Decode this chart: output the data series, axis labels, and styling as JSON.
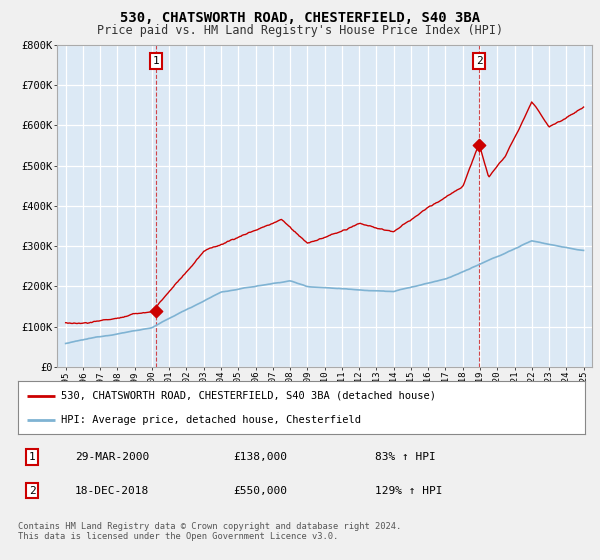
{
  "title": "530, CHATSWORTH ROAD, CHESTERFIELD, S40 3BA",
  "subtitle": "Price paid vs. HM Land Registry's House Price Index (HPI)",
  "ylabel_ticks": [
    "£0",
    "£100K",
    "£200K",
    "£300K",
    "£400K",
    "£500K",
    "£600K",
    "£700K",
    "£800K"
  ],
  "ytick_values": [
    0,
    100000,
    200000,
    300000,
    400000,
    500000,
    600000,
    700000,
    800000
  ],
  "ylim": [
    0,
    800000
  ],
  "xlim_start": 1994.5,
  "xlim_end": 2025.5,
  "red_color": "#cc0000",
  "blue_color": "#7fb3d3",
  "background_color": "#f0f0f0",
  "plot_bg_color": "#dce9f5",
  "grid_color": "#ffffff",
  "ann1_x": 2000.22,
  "ann1_y": 138000,
  "ann2_x": 2018.96,
  "ann2_y": 550000,
  "annotation1_text": "1",
  "annotation1_date": "29-MAR-2000",
  "annotation1_price": "£138,000",
  "annotation1_hpi": "83% ↑ HPI",
  "annotation2_text": "2",
  "annotation2_date": "18-DEC-2018",
  "annotation2_price": "£550,000",
  "annotation2_hpi": "129% ↑ HPI",
  "legend_label1": "530, CHATSWORTH ROAD, CHESTERFIELD, S40 3BA (detached house)",
  "legend_label2": "HPI: Average price, detached house, Chesterfield",
  "footer": "Contains HM Land Registry data © Crown copyright and database right 2024.\nThis data is licensed under the Open Government Licence v3.0."
}
